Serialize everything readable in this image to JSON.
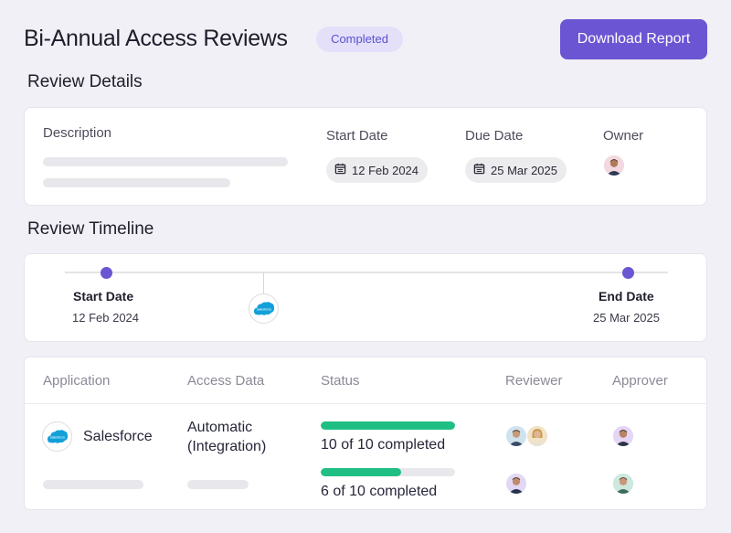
{
  "header": {
    "title": "Bi-Annual Access Reviews",
    "status_badge": "Completed",
    "download_label": "Download Report"
  },
  "details": {
    "section_title": "Review Details",
    "description_label": "Description",
    "start_date_label": "Start Date",
    "start_date_value": "12 Feb 2024",
    "due_date_label": "Due Date",
    "due_date_value": "25 Mar 2025",
    "owner_label": "Owner",
    "calendar_icon": "calendar-icon"
  },
  "timeline": {
    "section_title": "Review Timeline",
    "start_label": "Start Date",
    "start_date": "12 Feb 2024",
    "end_label": "End Date",
    "end_date": "25 Mar 2025",
    "milestone_logo_text": "salesforce"
  },
  "table": {
    "columns": [
      "Application",
      "Access Data",
      "Status",
      "Reviewer",
      "Approver"
    ],
    "rows": [
      {
        "application": "Salesforce",
        "logo_text": "salesforce",
        "access_line1": "Automatic",
        "access_line2": "(Integration)",
        "progress": 1.0,
        "status_text": "10 of 10 completed"
      },
      {
        "application": "",
        "access_line1": "",
        "progress": 0.6,
        "status_text": "6 of 10 completed"
      }
    ]
  },
  "colors": {
    "accent": "#6b55d3",
    "progress": "#1fbf84",
    "badge_bg": "#e4e0fa",
    "salesforce": "#12a0da"
  }
}
